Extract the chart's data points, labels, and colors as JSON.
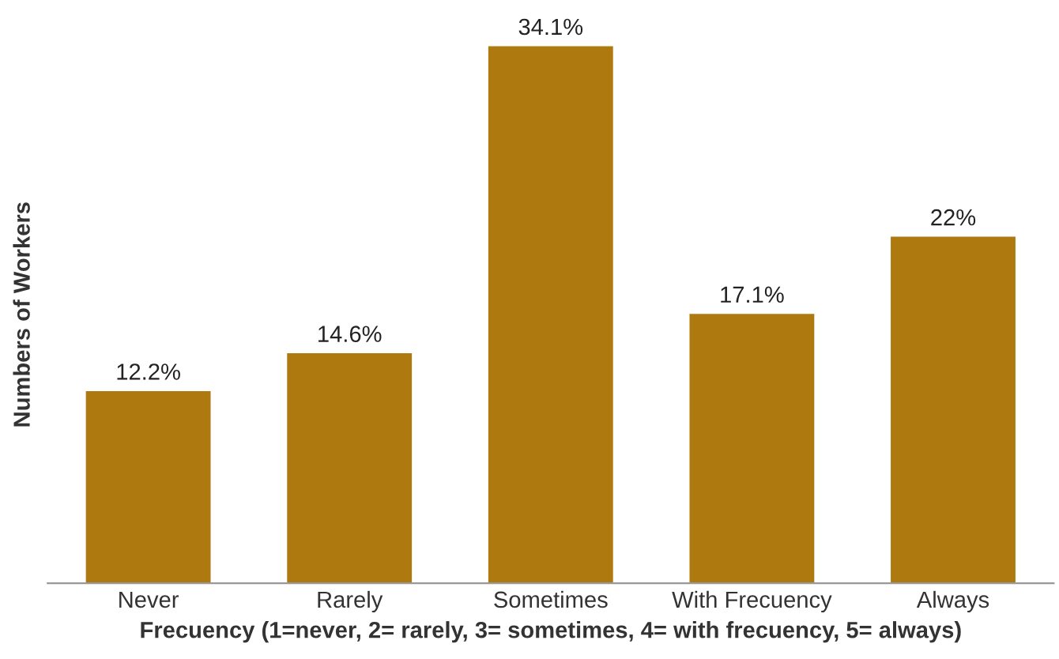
{
  "chart_data": {
    "type": "bar",
    "xlabel": "Frecuency (1=never, 2= rarely, 3= sometimes, 4= with frecuency, 5= always)",
    "ylabel": "Numbers of Workers",
    "categories": [
      "Never",
      "Rarely",
      "Sometimes",
      "With Frecuency",
      "Always"
    ],
    "values": [
      12.2,
      14.6,
      34.1,
      17.1,
      22
    ],
    "value_labels": [
      "12.2%",
      "14.6%",
      "34.1%",
      "17.1%",
      "22%"
    ],
    "color": "#ae7a10",
    "tick_labels": "x",
    "grid": false,
    "legend": false
  }
}
